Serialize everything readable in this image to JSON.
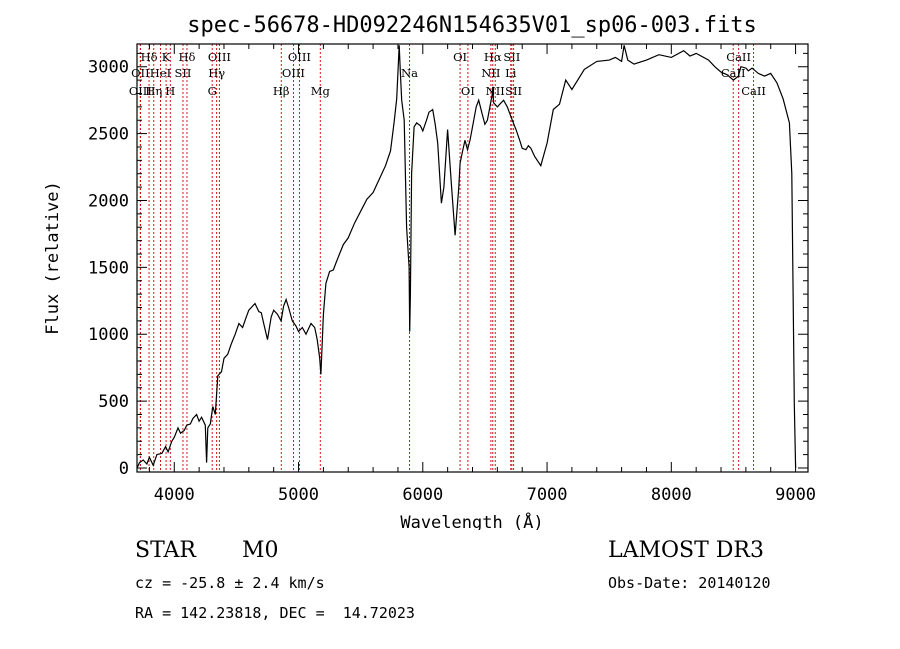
{
  "chart_data": {
    "type": "line",
    "title": "spec-56678-HD092246N154635V01_sp06-003.fits",
    "xlabel": "Wavelength (Å)",
    "ylabel": "Flux (relative)",
    "xlim": [
      3700,
      9100
    ],
    "ylim": [
      -30,
      3170
    ],
    "xticks": [
      4000,
      5000,
      6000,
      7000,
      8000,
      9000
    ],
    "yticks": [
      0,
      500,
      1000,
      1500,
      2000,
      2500,
      3000
    ],
    "grid": false,
    "line_color": "#000000",
    "marker_color": "#cc0000",
    "series": [
      {
        "x": [
          3700,
          3720,
          3750,
          3780,
          3800,
          3830,
          3860,
          3900,
          3930,
          3950,
          3980,
          4000,
          4030,
          4050,
          4080,
          4100,
          4130,
          4150,
          4180,
          4200,
          4220,
          4250,
          4260,
          4270,
          4290,
          4310,
          4330,
          4350,
          4380,
          4400,
          4430,
          4460,
          4490,
          4520,
          4550,
          4580,
          4600,
          4620,
          4650,
          4680,
          4700,
          4720,
          4750,
          4780,
          4800,
          4830,
          4860,
          4880,
          4900,
          4920,
          4950,
          4980,
          5000,
          5030,
          5060,
          5100,
          5130,
          5150,
          5170,
          5180,
          5200,
          5220,
          5250,
          5280,
          5300,
          5330,
          5360,
          5400,
          5450,
          5500,
          5550,
          5600,
          5650,
          5700,
          5740,
          5770,
          5790,
          5800,
          5810,
          5820,
          5830,
          5850,
          5870,
          5890,
          5895,
          5900,
          5910,
          5930,
          5950,
          5980,
          6000,
          6030,
          6050,
          6080,
          6100,
          6120,
          6150,
          6170,
          6200,
          6230,
          6260,
          6290,
          6300,
          6320,
          6340,
          6360,
          6380,
          6400,
          6430,
          6450,
          6480,
          6500,
          6520,
          6540,
          6560,
          6563,
          6570,
          6600,
          6620,
          6650,
          6680,
          6700,
          6720,
          6750,
          6780,
          6800,
          6830,
          6850,
          6870,
          6900,
          6950,
          7000,
          7050,
          7100,
          7150,
          7200,
          7300,
          7400,
          7500,
          7550,
          7600,
          7620,
          7650,
          7700,
          7800,
          7900,
          8000,
          8100,
          8150,
          8200,
          8300,
          8350,
          8400,
          8450,
          8500,
          8540,
          8560,
          8600,
          8620,
          8650,
          8700,
          8750,
          8800,
          8850,
          8900,
          8950,
          8970,
          8990,
          9000
        ],
        "y": [
          0,
          40,
          60,
          30,
          80,
          20,
          100,
          110,
          160,
          120,
          200,
          230,
          300,
          260,
          280,
          320,
          330,
          370,
          400,
          350,
          380,
          320,
          40,
          300,
          330,
          460,
          400,
          690,
          720,
          820,
          850,
          930,
          1000,
          1080,
          1050,
          1130,
          1180,
          1200,
          1230,
          1170,
          1160,
          1080,
          960,
          1130,
          1180,
          1150,
          1100,
          1210,
          1260,
          1200,
          1100,
          1060,
          1020,
          1050,
          1000,
          1080,
          1050,
          960,
          820,
          700,
          1150,
          1380,
          1470,
          1480,
          1530,
          1600,
          1670,
          1720,
          1830,
          1920,
          2010,
          2060,
          2160,
          2260,
          2370,
          2590,
          2760,
          2950,
          3160,
          2950,
          2750,
          2600,
          1800,
          1500,
          1020,
          1300,
          2200,
          2550,
          2580,
          2560,
          2520,
          2600,
          2660,
          2680,
          2570,
          2430,
          1980,
          2100,
          2530,
          2120,
          1740,
          2100,
          2280,
          2370,
          2450,
          2380,
          2450,
          2550,
          2700,
          2750,
          2640,
          2570,
          2600,
          2700,
          2800,
          2850,
          2730,
          2700,
          2720,
          2750,
          2700,
          2650,
          2600,
          2530,
          2450,
          2390,
          2380,
          2410,
          2390,
          2330,
          2260,
          2430,
          2680,
          2720,
          2900,
          2830,
          2980,
          3040,
          3050,
          3070,
          3040,
          3160,
          3050,
          3020,
          3050,
          3090,
          3070,
          3120,
          3080,
          3100,
          3050,
          3000,
          2960,
          2940,
          2900,
          2930,
          3000,
          2990,
          2970,
          2990,
          2950,
          2930,
          2950,
          2880,
          2760,
          2580,
          2200,
          480,
          0
        ]
      }
    ],
    "line_markers": [
      {
        "label": "Hδ",
        "x": 3797,
        "row": 1
      },
      {
        "label": "OII",
        "x": 3727,
        "row": 2
      },
      {
        "label": "OIII",
        "x": 3727,
        "row": 3
      },
      {
        "label": "K",
        "x": 3934,
        "row": 1
      },
      {
        "label": "HeI",
        "x": 3889,
        "row": 2
      },
      {
        "label": "Hη",
        "x": 3835,
        "row": 3
      },
      {
        "label": "Hδ",
        "x": 4102,
        "row": 1
      },
      {
        "label": "SII",
        "x": 4070,
        "row": 2
      },
      {
        "label": "H",
        "x": 3968,
        "row": 3
      },
      {
        "label": "OIII",
        "x": 4363,
        "row": 1
      },
      {
        "label": "Hγ",
        "x": 4341,
        "row": 2
      },
      {
        "label": "G",
        "x": 4305,
        "row": 3
      },
      {
        "label": "OIII",
        "x": 5007,
        "row": 1
      },
      {
        "label": "OIII",
        "x": 4959,
        "row": 2
      },
      {
        "label": "Hβ",
        "x": 4861,
        "row": 3
      },
      {
        "label": "Mg",
        "x": 5175,
        "row": 3
      },
      {
        "label": "Na",
        "x": 5893,
        "row": 2
      },
      {
        "label": "OI",
        "x": 6300,
        "row": 1
      },
      {
        "label": "OI",
        "x": 6363,
        "row": 3
      },
      {
        "label": "Hα",
        "x": 6563,
        "row": 1
      },
      {
        "label": "SII",
        "x": 6717,
        "row": 1
      },
      {
        "label": "NII",
        "x": 6548,
        "row": 2
      },
      {
        "label": "Li",
        "x": 6708,
        "row": 2
      },
      {
        "label": "NII",
        "x": 6583,
        "row": 3
      },
      {
        "label": "SII",
        "x": 6731,
        "row": 3
      },
      {
        "label": "CaII",
        "x": 8542,
        "row": 1
      },
      {
        "label": "CaII",
        "x": 8498,
        "row": 2
      },
      {
        "label": "CaII",
        "x": 8662,
        "row": 3
      }
    ]
  },
  "info": {
    "object_class": "STAR",
    "subclass": "M0",
    "survey": "LAMOST DR3",
    "redshift": "cz = -25.8 ± 2.4 km/s",
    "obs_date": "Obs-Date: 20140120",
    "coords": "RA = 142.23818, DEC =  14.72023"
  }
}
